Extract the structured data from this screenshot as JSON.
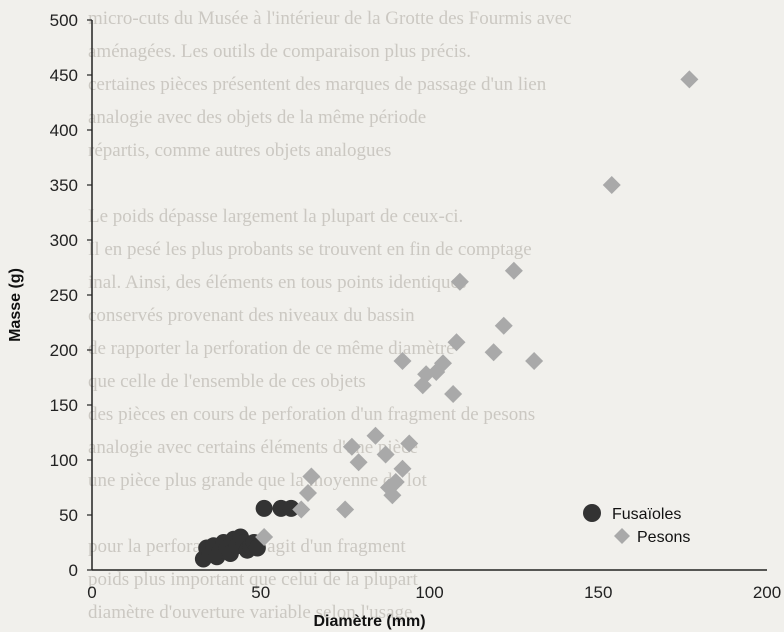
{
  "chart_data": {
    "type": "scatter",
    "title": "",
    "xlabel": "Diamètre (mm)",
    "ylabel": "Masse (g)",
    "xlim": [
      0,
      200
    ],
    "ylim": [
      0,
      500
    ],
    "xticks": [
      "0",
      "50",
      "100",
      "150",
      "200"
    ],
    "yticks": [
      "0",
      "50",
      "100",
      "150",
      "200",
      "250",
      "300",
      "350",
      "400",
      "450",
      "500"
    ],
    "grid": false,
    "legend_position": "bottom-right",
    "series": [
      {
        "name": "Fusaïoles",
        "marker": "circle",
        "color": "#333333",
        "points": [
          [
            33,
            10
          ],
          [
            34,
            20
          ],
          [
            35,
            15
          ],
          [
            36,
            22
          ],
          [
            37,
            12
          ],
          [
            38,
            18
          ],
          [
            39,
            25
          ],
          [
            40,
            20
          ],
          [
            41,
            15
          ],
          [
            42,
            28
          ],
          [
            43,
            22
          ],
          [
            44,
            30
          ],
          [
            45,
            25
          ],
          [
            46,
            18
          ],
          [
            47,
            22
          ],
          [
            48,
            25
          ],
          [
            49,
            20
          ],
          [
            51,
            56
          ],
          [
            56,
            56
          ],
          [
            59,
            56
          ]
        ]
      },
      {
        "name": "Pesons",
        "marker": "diamond",
        "color": "#a9a9a9",
        "points": [
          [
            51,
            30
          ],
          [
            62,
            55
          ],
          [
            64,
            70
          ],
          [
            65,
            85
          ],
          [
            75,
            55
          ],
          [
            77,
            112
          ],
          [
            79,
            98
          ],
          [
            84,
            122
          ],
          [
            87,
            105
          ],
          [
            88,
            75
          ],
          [
            89,
            68
          ],
          [
            90,
            80
          ],
          [
            92,
            92
          ],
          [
            94,
            115
          ],
          [
            92,
            190
          ],
          [
            98,
            168
          ],
          [
            99,
            178
          ],
          [
            102,
            180
          ],
          [
            104,
            188
          ],
          [
            107,
            160
          ],
          [
            108,
            207
          ],
          [
            109,
            262
          ],
          [
            119,
            198
          ],
          [
            122,
            222
          ],
          [
            125,
            272
          ],
          [
            131,
            190
          ],
          [
            154,
            350
          ],
          [
            177,
            446
          ]
        ]
      }
    ]
  },
  "background_text": [
    "micro-cuts du Musée à l'intérieur de la Grotte des Fourmis avec",
    "aménagées. Les outils de comparaison plus précis.",
    "certaines pièces présentent des marques de passage d'un lien",
    "analogie avec des objets de la même période",
    "répartis, comme autres objets analogues",
    "",
    "Le poids dépasse largement la plupart de ceux-ci.",
    "Il en pesé les plus probants se trouvent en fin de comptage",
    "inal. Ainsi, des éléments en tous points identiques",
    "conservés provenant des niveaux du bassin",
    "de rapporter la perforation de ce même diamètre",
    "que celle de l'ensemble de ces objets",
    "des pièces en cours de perforation d'un fragment de pesons",
    "analogie avec certains éléments d'une pièce",
    "une pièce plus grande que la moyenne du lot",
    "",
    "pour la perforation. Il s'agit d'un fragment",
    "poids plus important que celui de la plupart",
    "diamètre d'ouverture variable selon l'usage"
  ]
}
